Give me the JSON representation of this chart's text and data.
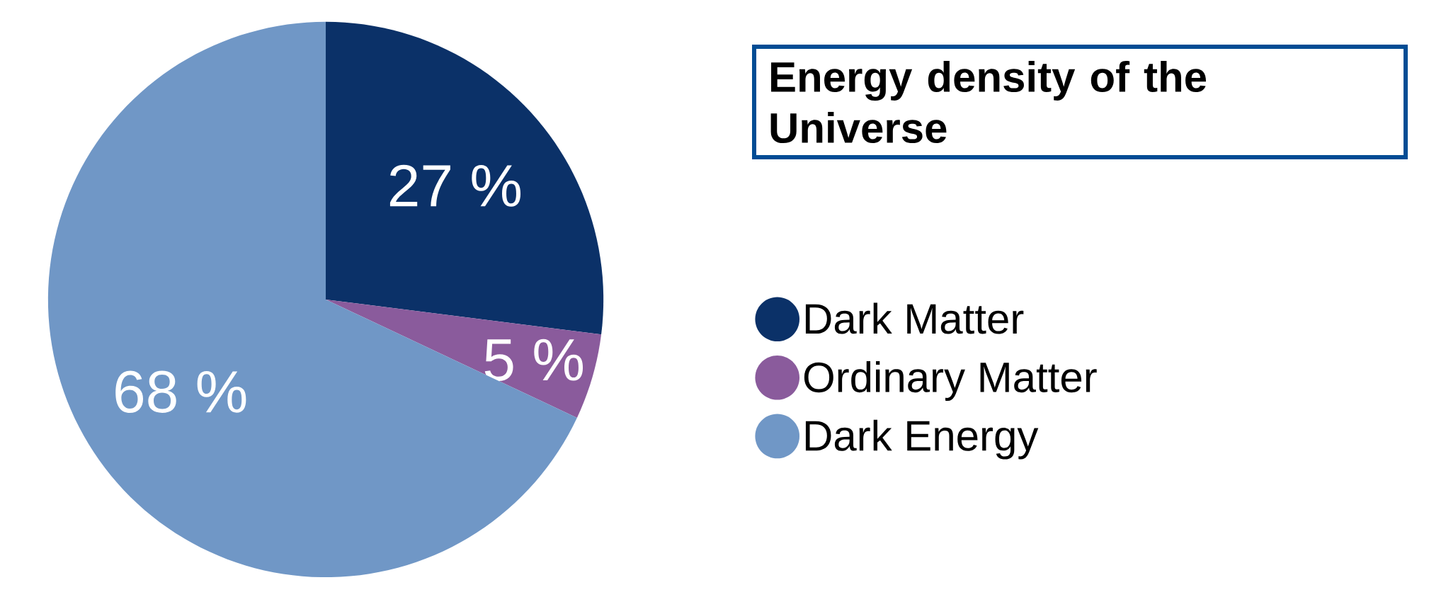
{
  "chart_data": {
    "type": "pie",
    "title": "Energy density of the Universe",
    "categories": [
      "Dark Matter",
      "Ordinary Matter",
      "Dark Energy"
    ],
    "values": [
      27,
      5,
      68
    ],
    "colors": [
      "#0b3168",
      "#8a5b9c",
      "#7097c6"
    ],
    "value_labels": [
      "27 %",
      "5 %",
      "68 %"
    ],
    "legend": "right"
  }
}
